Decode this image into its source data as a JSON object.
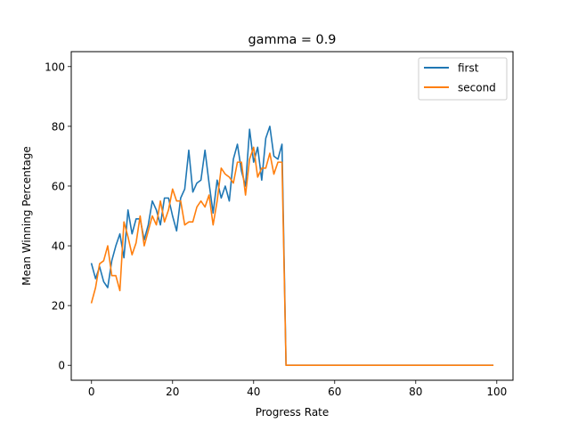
{
  "chart_data": {
    "type": "line",
    "title": "gamma = 0.9",
    "xlabel": "Progress Rate",
    "ylabel": "Mean Winning Percentage",
    "xlim": [
      -5,
      104
    ],
    "ylim": [
      -5,
      105
    ],
    "xticks": [
      0,
      20,
      40,
      60,
      80,
      100
    ],
    "yticks": [
      0,
      20,
      40,
      60,
      80,
      100
    ],
    "grid": false,
    "legend_position": "top-right",
    "x": [
      0,
      1,
      2,
      3,
      4,
      5,
      6,
      7,
      8,
      9,
      10,
      11,
      12,
      13,
      14,
      15,
      16,
      17,
      18,
      19,
      20,
      21,
      22,
      23,
      24,
      25,
      26,
      27,
      28,
      29,
      30,
      31,
      32,
      33,
      34,
      35,
      36,
      37,
      38,
      39,
      40,
      41,
      42,
      43,
      44,
      45,
      46,
      47,
      48,
      49,
      50,
      51,
      52,
      53,
      54,
      55,
      56,
      57,
      58,
      59,
      60,
      61,
      62,
      63,
      64,
      65,
      66,
      67,
      68,
      69,
      70,
      71,
      72,
      73,
      74,
      75,
      76,
      77,
      78,
      79,
      80,
      81,
      82,
      83,
      84,
      85,
      86,
      87,
      88,
      89,
      90,
      91,
      92,
      93,
      94,
      95,
      96,
      97,
      98,
      99
    ],
    "series": [
      {
        "name": "first",
        "color": "#1f77b4",
        "values": [
          34,
          29,
          33,
          28,
          26,
          35,
          40,
          44,
          36,
          52,
          44,
          49,
          49,
          42,
          47,
          55,
          52,
          47,
          56,
          56,
          50,
          45,
          56,
          59,
          72,
          58,
          61,
          62,
          72,
          61,
          51,
          62,
          56,
          60,
          55,
          69,
          74,
          65,
          60,
          79,
          68,
          73,
          62,
          76,
          80,
          70,
          69,
          74,
          0,
          0,
          0,
          0,
          0,
          0,
          0,
          0,
          0,
          0,
          0,
          0,
          0,
          0,
          0,
          0,
          0,
          0,
          0,
          0,
          0,
          0,
          0,
          0,
          0,
          0,
          0,
          0,
          0,
          0,
          0,
          0,
          0,
          0,
          0,
          0,
          0,
          0,
          0,
          0,
          0,
          0,
          0,
          0,
          0,
          0,
          0,
          0,
          0,
          0,
          0,
          0
        ]
      },
      {
        "name": "second",
        "color": "#ff7f0e",
        "values": [
          21,
          26,
          34,
          35,
          40,
          30,
          30,
          25,
          48,
          43,
          37,
          41,
          50,
          40,
          45,
          50,
          47,
          55,
          48,
          52,
          59,
          55,
          55,
          47,
          48,
          48,
          53,
          55,
          53,
          57,
          47,
          55,
          66,
          64,
          63,
          61,
          68,
          68,
          57,
          69,
          73,
          63,
          66,
          66,
          71,
          64,
          68,
          68,
          0,
          0,
          0,
          0,
          0,
          0,
          0,
          0,
          0,
          0,
          0,
          0,
          0,
          0,
          0,
          0,
          0,
          0,
          0,
          0,
          0,
          0,
          0,
          0,
          0,
          0,
          0,
          0,
          0,
          0,
          0,
          0,
          0,
          0,
          0,
          0,
          0,
          0,
          0,
          0,
          0,
          0,
          0,
          0,
          0,
          0,
          0,
          0,
          0,
          0,
          0,
          0
        ]
      }
    ]
  }
}
